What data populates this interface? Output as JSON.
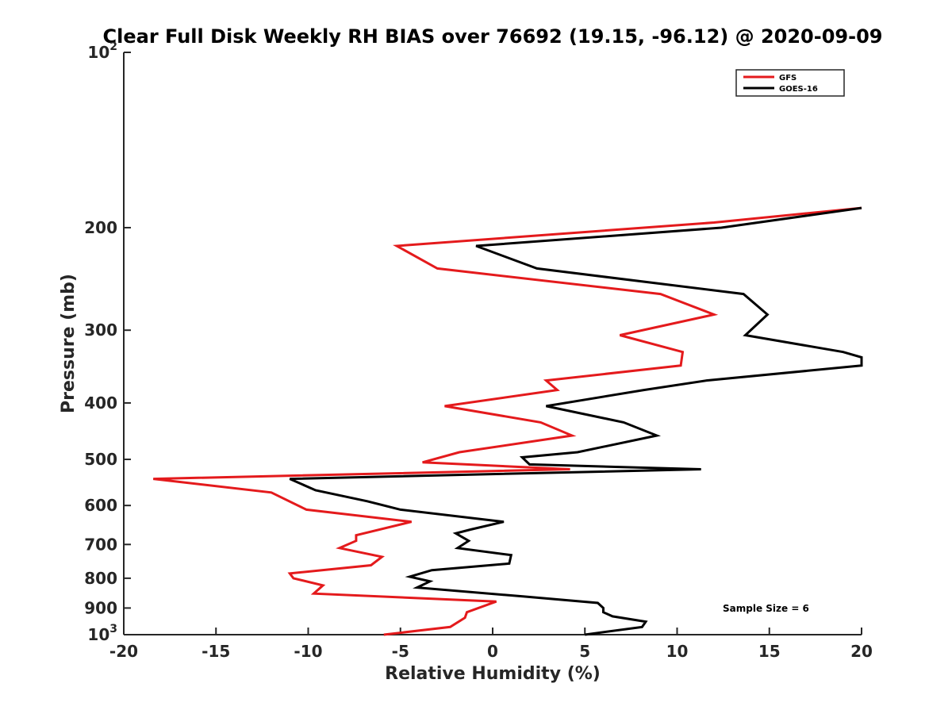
{
  "chart_data": {
    "type": "line",
    "title": "Clear Full Disk Weekly RH BIAS over 76692 (19.15, -96.12) @ 2020-09-09",
    "xlabel": "Relative Humidity (%)",
    "ylabel": "Pressure (mb)",
    "xlim": [
      -20,
      20
    ],
    "ylim": [
      100,
      1000
    ],
    "yscale": "log",
    "yreverse": true,
    "grid": false,
    "legend_position": "top-right",
    "x_ticks": [
      -20,
      -15,
      -10,
      -5,
      0,
      5,
      10,
      15,
      20
    ],
    "x_tick_labels": [
      "-20",
      "-15",
      "-10",
      "-5",
      "0",
      "5",
      "10",
      "15",
      "20"
    ],
    "y_ticks": [
      100,
      200,
      300,
      400,
      500,
      600,
      700,
      800,
      900,
      1000
    ],
    "y_tick_labels": [
      {
        "base": "10",
        "exp": "2"
      },
      {
        "base": "200",
        "exp": ""
      },
      {
        "base": "300",
        "exp": ""
      },
      {
        "base": "400",
        "exp": ""
      },
      {
        "base": "500",
        "exp": ""
      },
      {
        "base": "600",
        "exp": ""
      },
      {
        "base": "700",
        "exp": ""
      },
      {
        "base": "800",
        "exp": ""
      },
      {
        "base": "900",
        "exp": ""
      },
      {
        "base": "10",
        "exp": "3"
      }
    ],
    "annotation": "Sample Size = 6",
    "series": [
      {
        "name": "GFS",
        "color": "#e41a1c",
        "x": [
          20,
          12,
          -5.2,
          -3,
          9.1,
          12,
          6.9,
          10.3,
          10.2,
          2.9,
          3.5,
          -2.6,
          2.6,
          4.3,
          -1.8,
          -3.8,
          4.2,
          -18.4,
          -12,
          -10.1,
          -4.4,
          -7.4,
          -7.4,
          -8.3,
          -6,
          -6.6,
          -11,
          -10.8,
          -9.2,
          -9.7,
          0.2,
          -1.4,
          -1.5,
          -2.3,
          -5.9
        ],
        "y": [
          185,
          196,
          215,
          235,
          260,
          282,
          306,
          327,
          345,
          366,
          380,
          405,
          432,
          455,
          486,
          506,
          520,
          540,
          570,
          610,
          640,
          675,
          690,
          710,
          735,
          760,
          785,
          800,
          823,
          850,
          877,
          915,
          935,
          970,
          1000
        ]
      },
      {
        "name": "GOES-16",
        "color": "#000000",
        "x": [
          20,
          12.4,
          -0.9,
          2.4,
          13.6,
          14.9,
          13.7,
          19,
          20,
          20,
          11.6,
          8.2,
          2.9,
          7.1,
          8.9,
          4.6,
          1.6,
          2,
          11.3,
          -11,
          -9.6,
          -6.8,
          -5,
          0.6,
          -1.2,
          -2,
          -1.3,
          -1.9,
          1,
          0.9,
          -3.3,
          -4.5,
          -3.4,
          -4.1,
          1.7,
          5.7,
          6,
          6,
          6.5,
          8.3,
          8.1,
          5
        ],
        "y": [
          185,
          200,
          215,
          235,
          260,
          282,
          306,
          327,
          334,
          345,
          366,
          380,
          405,
          432,
          455,
          486,
          496,
          510,
          520,
          540,
          565,
          590,
          610,
          640,
          660,
          670,
          690,
          710,
          730,
          755,
          775,
          795,
          810,
          830,
          860,
          882,
          900,
          915,
          930,
          950,
          970,
          1000
        ]
      }
    ]
  }
}
